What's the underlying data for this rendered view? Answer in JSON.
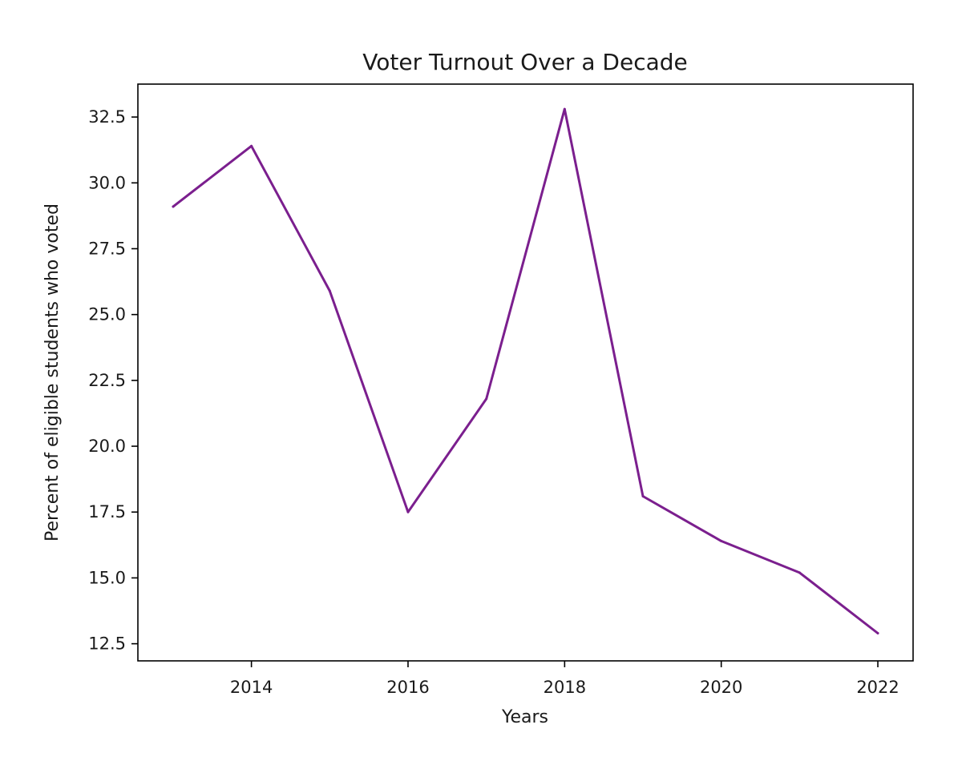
{
  "chart_data": {
    "type": "line",
    "title": "Voter Turnout Over a Decade",
    "xlabel": "Years",
    "ylabel": "Percent of eligible students who voted",
    "x": [
      2013,
      2014,
      2015,
      2016,
      2017,
      2018,
      2019,
      2020,
      2021,
      2022
    ],
    "series": [
      {
        "color": "#7b1f8e",
        "values": [
          29.1,
          31.4,
          25.9,
          17.5,
          21.8,
          32.8,
          18.1,
          16.4,
          15.2,
          12.9
        ]
      }
    ],
    "xlim": [
      2012.55,
      2022.45
    ],
    "ylim": [
      11.85,
      33.75
    ],
    "xticks": [
      2014,
      2016,
      2018,
      2020,
      2022
    ],
    "xtick_labels": [
      "2014",
      "2016",
      "2018",
      "2020",
      "2022"
    ],
    "yticks": [
      12.5,
      15.0,
      17.5,
      20.0,
      22.5,
      25.0,
      27.5,
      30.0,
      32.5
    ],
    "ytick_labels": [
      "12.5",
      "15.0",
      "17.5",
      "20.0",
      "22.5",
      "25.0",
      "27.5",
      "30.0",
      "32.5"
    ],
    "grid": false,
    "legend": "none"
  }
}
